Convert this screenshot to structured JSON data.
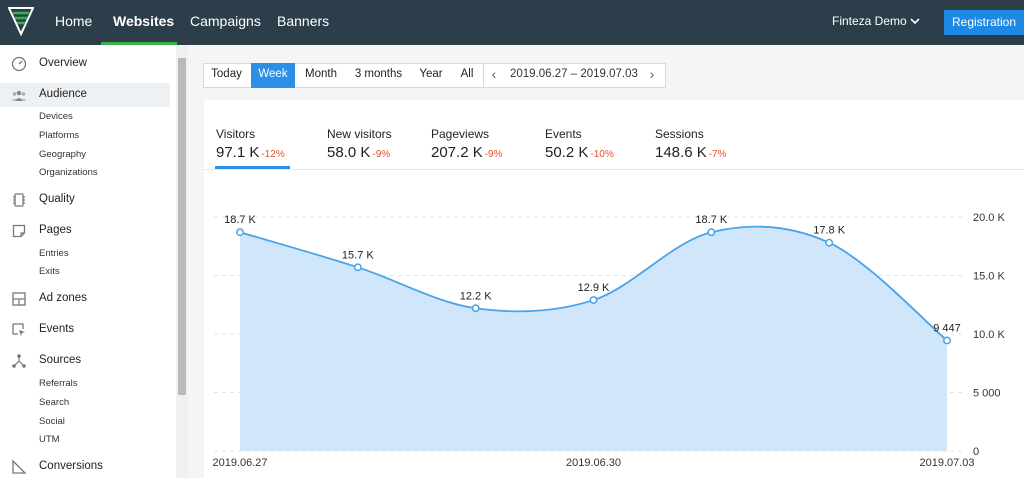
{
  "topbar": {
    "nav": [
      "Home",
      "Websites",
      "Campaigns",
      "Banners"
    ],
    "active_index": 1,
    "user": "Finteza Demo",
    "registration": "Registration"
  },
  "sidebar": {
    "items": [
      {
        "label": "Overview",
        "icon": "speedometer-icon"
      },
      {
        "label": "Audience",
        "icon": "users-icon",
        "active": true,
        "subs": [
          "Devices",
          "Platforms",
          "Geography",
          "Organizations"
        ]
      },
      {
        "label": "Quality",
        "icon": "quality-icon"
      },
      {
        "label": "Pages",
        "icon": "page-icon",
        "subs": [
          "Entries",
          "Exits"
        ]
      },
      {
        "label": "Ad zones",
        "icon": "ad-zones-icon"
      },
      {
        "label": "Events",
        "icon": "cursor-icon"
      },
      {
        "label": "Sources",
        "icon": "sources-icon",
        "subs": [
          "Referrals",
          "Search",
          "Social",
          "UTM"
        ]
      },
      {
        "label": "Conversions",
        "icon": "funnel-icon"
      }
    ]
  },
  "period": {
    "options": [
      "Today",
      "Week",
      "Month",
      "3 months",
      "Year",
      "All"
    ],
    "selected": "Week",
    "range": "2019.06.27 – 2019.07.03"
  },
  "metrics": [
    {
      "label": "Visitors",
      "value": "97.1 K",
      "change": "-12%",
      "selected": true
    },
    {
      "label": "New visitors",
      "value": "58.0 K",
      "change": "-9%"
    },
    {
      "label": "Pageviews",
      "value": "207.2 K",
      "change": "-9%"
    },
    {
      "label": "Events",
      "value": "50.2 K",
      "change": "-10%"
    },
    {
      "label": "Sessions",
      "value": "148.6 K",
      "change": "-7%"
    }
  ],
  "colors": {
    "accent": "#2d8ee6",
    "line": "#4aa3e8",
    "fill": "#cfe6fb",
    "negative": "#e0532f",
    "topbar": "#2c3e4a",
    "nav_active": "#3ab44a"
  },
  "chart_data": {
    "type": "area",
    "x": [
      "2019.06.27",
      "2019.06.28",
      "2019.06.29",
      "2019.06.30",
      "2019.07.01",
      "2019.07.02",
      "2019.07.03"
    ],
    "values": [
      18700,
      15700,
      12200,
      12900,
      18700,
      17800,
      9447
    ],
    "point_labels": [
      "18.7 K",
      "15.7 K",
      "12.2 K",
      "12.9 K",
      "18.7 K",
      "17.8 K",
      "9 447"
    ],
    "x_tick_labels": [
      "2019.06.27",
      "2019.06.30",
      "2019.07.03"
    ],
    "y_ticks": [
      0,
      5000,
      10000,
      15000,
      20000
    ],
    "y_tick_labels": [
      "0",
      "5 000",
      "10.0 K",
      "15.0 K",
      "20.0 K"
    ],
    "ylim": [
      0,
      20000
    ],
    "grid": true
  }
}
